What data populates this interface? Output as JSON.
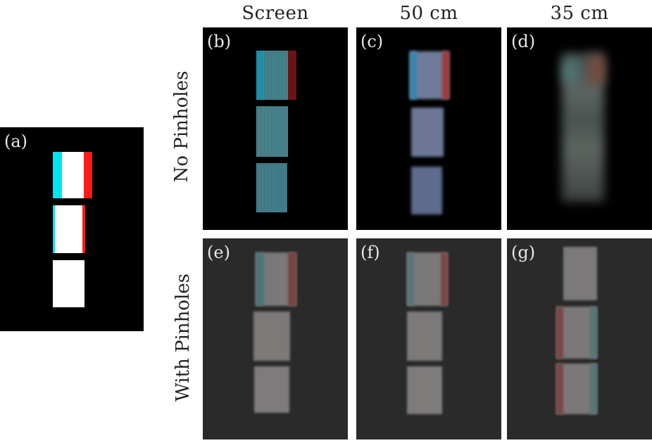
{
  "columns": {
    "screen": "Screen",
    "cm50": "50 cm",
    "cm35": "35 cm"
  },
  "rows": {
    "no_pinholes": "No Pinholes",
    "with_pinholes": "With Pinholes"
  },
  "panels": {
    "a": "(a)",
    "b": "(b)",
    "c": "(c)",
    "d": "(d)",
    "e": "(e)",
    "f": "(f)",
    "g": "(g)"
  },
  "colors": {
    "background": "#000000",
    "pinhole_background": "#2b2a2a",
    "white_block": "#ffffff",
    "cyan": "#00e5f0",
    "red": "#ff1a1a"
  }
}
